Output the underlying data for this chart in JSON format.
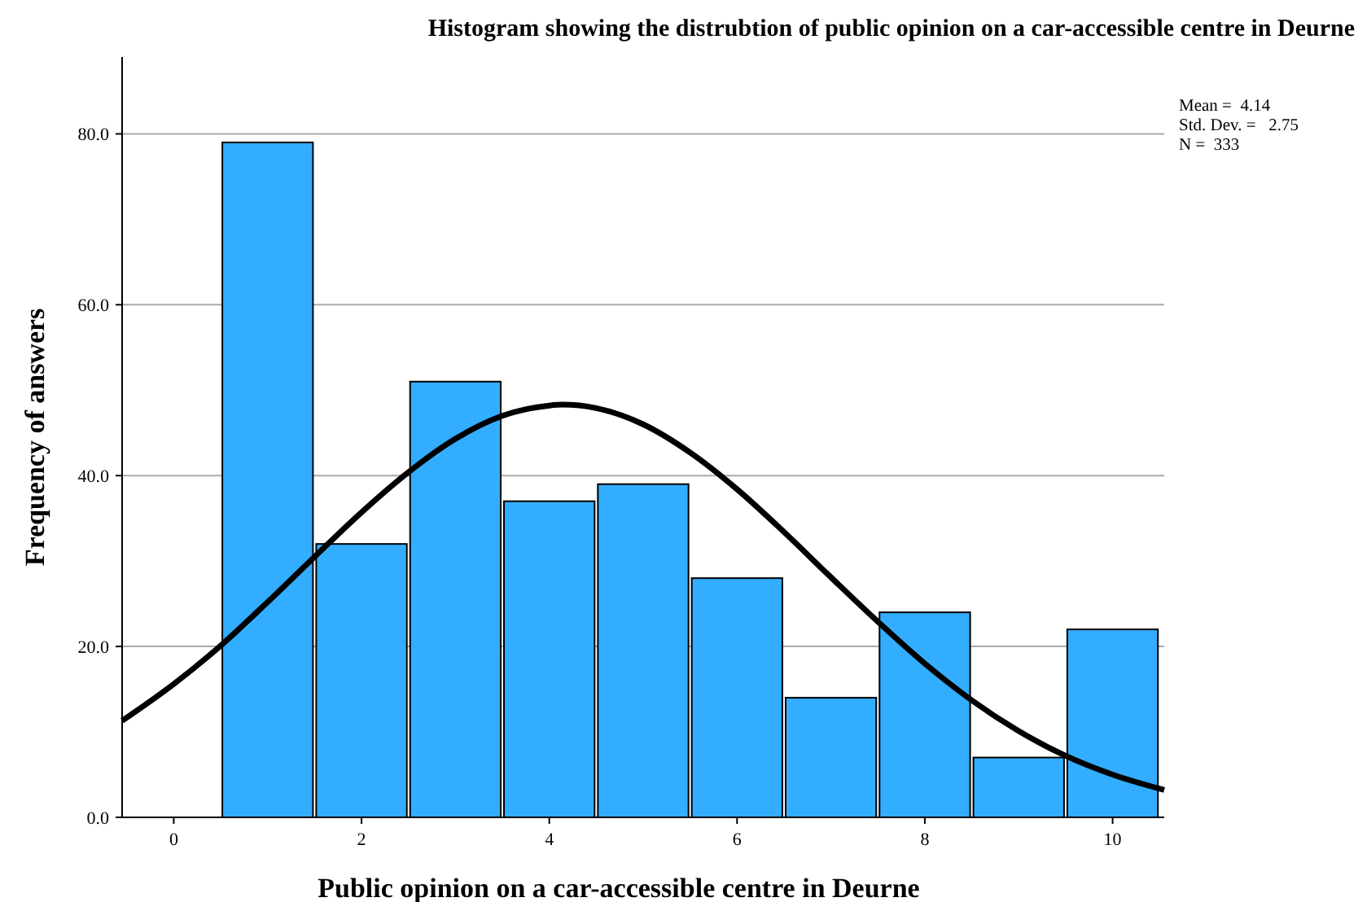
{
  "chart_data": {
    "type": "histogram",
    "title": "Histogram showing the distrubtion of public opinion on a car-accessible centre in Deurne",
    "xlabel": "Public opinion on a car-accessible centre in Deurne",
    "ylabel": "Frequency of answers",
    "bins": [
      0.5,
      1.5,
      2.5,
      3.5,
      4.5,
      5.5,
      6.5,
      7.5,
      8.5,
      9.5,
      10.5
    ],
    "series": [
      {
        "color": "#33adff",
        "values": [
          79,
          32,
          51,
          37,
          39,
          28,
          14,
          24,
          7,
          22
        ]
      },
      {
        "type": "line",
        "color": "#000000",
        "x": [
          -0.55,
          0,
          0.5,
          1,
          1.5,
          2,
          2.5,
          3,
          3.5,
          4,
          4.14,
          4.5,
          5,
          5.5,
          6,
          6.5,
          7,
          7.5,
          8,
          8.5,
          9,
          9.5,
          10,
          10.55
        ],
        "values": [
          11.3,
          15.6,
          20.1,
          25.2,
          30.5,
          35.7,
          40.4,
          44.3,
          47.0,
          48.2,
          48.3,
          47.9,
          46.0,
          42.7,
          38.4,
          33.4,
          28.1,
          22.9,
          18.0,
          13.7,
          10.1,
          7.2,
          5.0,
          3.2
        ]
      }
    ],
    "xlim": [
      -0.55,
      10.55
    ],
    "xticks": [
      0,
      2,
      4,
      6,
      8,
      10
    ],
    "ylim": [
      0,
      89
    ],
    "yticks": [
      {
        "value": 0,
        "label": "0.0"
      },
      {
        "value": 20,
        "label": "20.0"
      },
      {
        "value": 40,
        "label": "40.0"
      },
      {
        "value": 60,
        "label": "60.0"
      },
      {
        "value": 80,
        "label": "80.0"
      }
    ],
    "grid": "y",
    "line_style": "solid",
    "marker": "none",
    "annotations": [
      "Mean =  4.14",
      "Std. Dev. =   2.75",
      "N =  333"
    ]
  }
}
